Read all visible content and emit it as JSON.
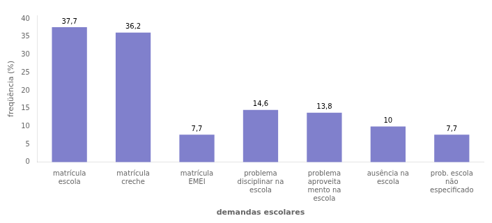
{
  "chart_data": {
    "type": "bar",
    "categories": [
      "matrícula\nescola",
      "matrícula\ncreche",
      "matrícula\nEMEI",
      "problema\ndisciplinar na\nescola",
      "problema\naproveita\nmento na\nescola",
      "ausência na\nescola",
      "prob. escola\nnão\nespecificado"
    ],
    "values": [
      37.7,
      36.2,
      7.7,
      14.6,
      13.8,
      10.0,
      7.7
    ],
    "value_labels": [
      "37,7",
      "36,2",
      "7,7",
      "14,6",
      "13,8",
      "10",
      "7,7"
    ],
    "data_labels": true,
    "color": "#8080CC",
    "x_label": "demandas escolares",
    "y_label": "freqüência (%)",
    "ylim": [
      0,
      41
    ],
    "yticks": [
      0,
      5,
      10,
      15,
      20,
      25,
      30,
      35,
      40
    ],
    "grid": false,
    "legend": false
  }
}
